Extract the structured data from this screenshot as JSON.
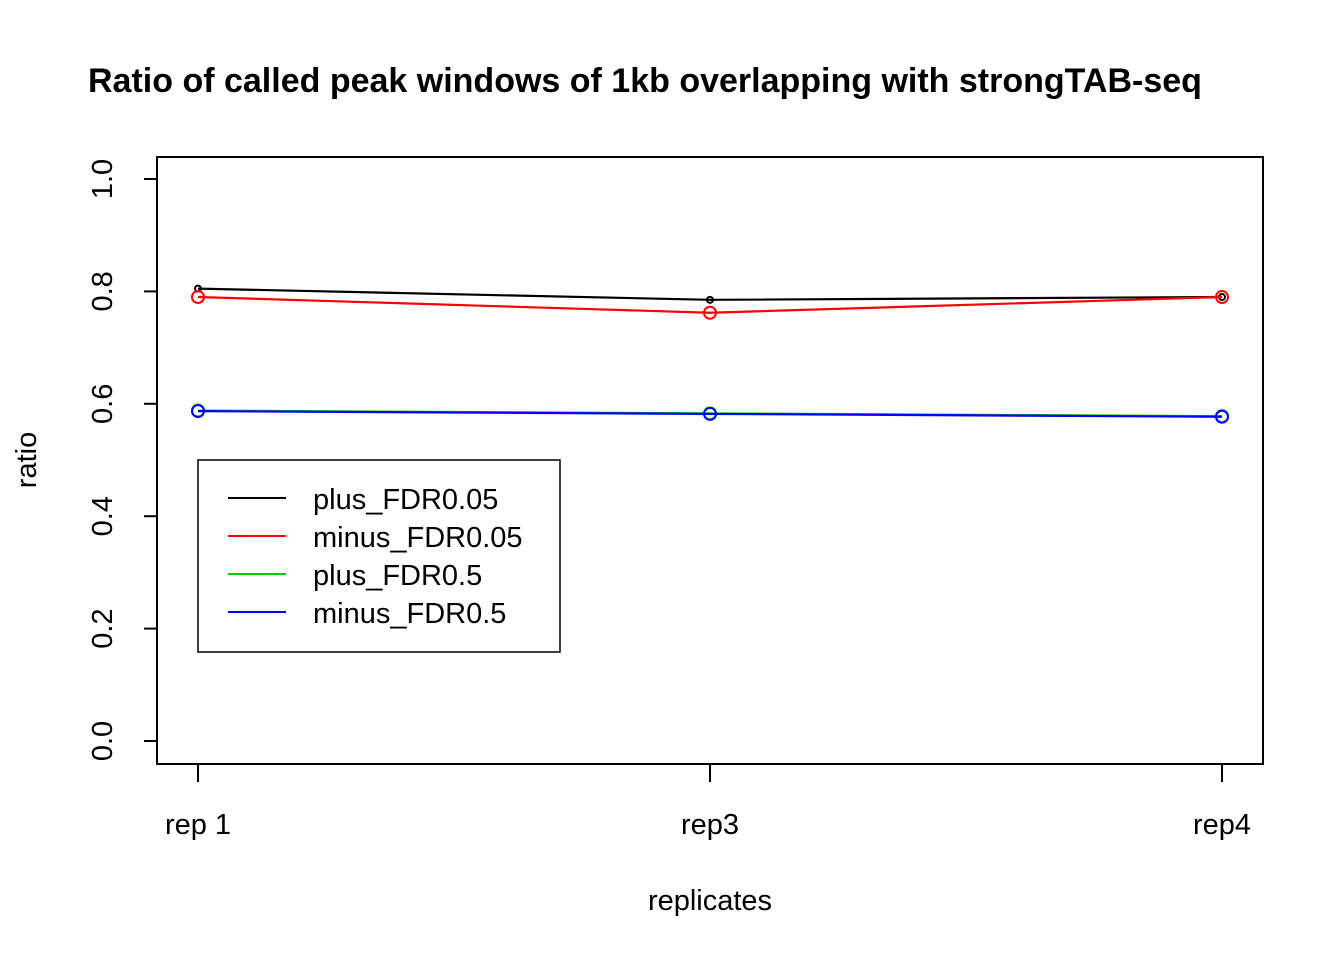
{
  "chart_data": {
    "type": "line",
    "title": "Ratio of called peak windows of 1kb overlapping with strongTAB-seq",
    "xlabel": "replicates",
    "ylabel": "ratio",
    "categories": [
      "rep 1",
      "rep3",
      "rep4"
    ],
    "ylim": [
      0,
      1
    ],
    "yticks": [
      "0.0",
      "0.2",
      "0.4",
      "0.6",
      "0.8",
      "1.0"
    ],
    "grid": false,
    "legend_position": "left",
    "series": [
      {
        "name": "plus_FDR0.05",
        "color": "#000000",
        "values": [
          0.805,
          0.785,
          0.79
        ],
        "marker": "dot"
      },
      {
        "name": "minus_FDR0.05",
        "color": "#ff0000",
        "values": [
          0.79,
          0.762,
          0.79
        ],
        "marker": "circle"
      },
      {
        "name": "plus_FDR0.5",
        "color": "#00cd00",
        "values": [
          0.588,
          0.583,
          0.578
        ],
        "marker": "circle"
      },
      {
        "name": "minus_FDR0.5",
        "color": "#0000ff",
        "values": [
          0.587,
          0.582,
          0.577
        ],
        "marker": "circle"
      }
    ]
  }
}
